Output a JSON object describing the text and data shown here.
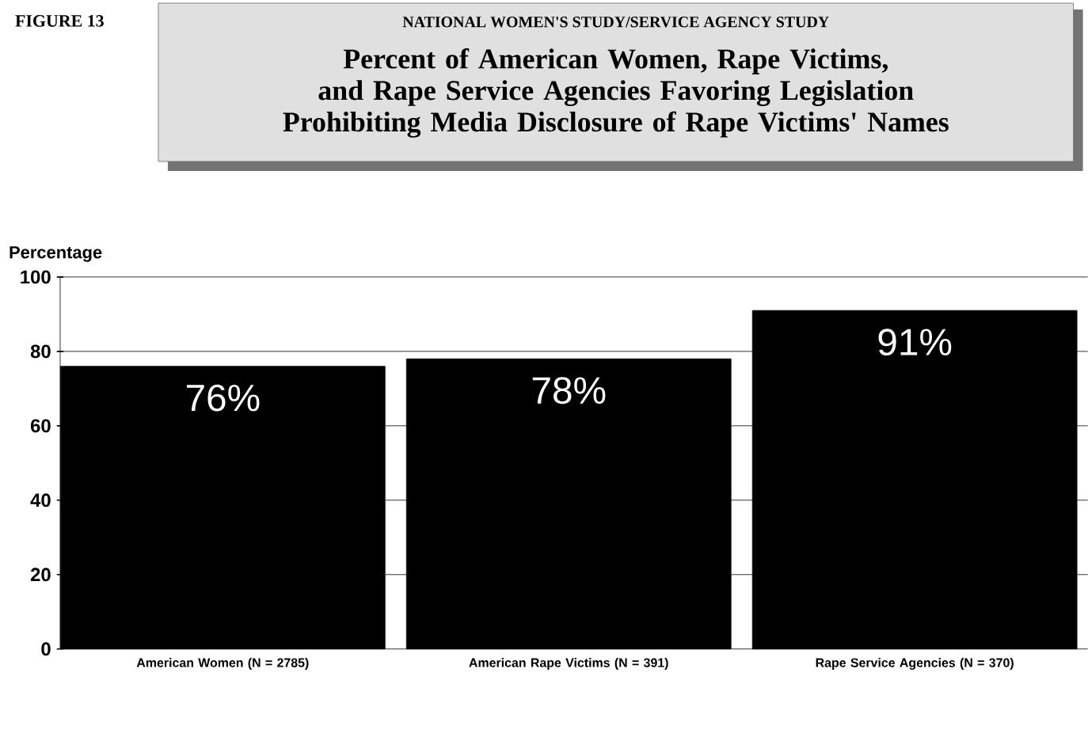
{
  "chart_data": {
    "type": "bar",
    "subtitle": "NATIONAL WOMEN'S STUDY/SERVICE AGENCY STUDY",
    "title": "Percent of American Women, Rape Victims, and Rape Service Agencies Favoring Legislation Prohibiting Media Disclosure of Rape Victims' Names",
    "ylabel": "Percentage",
    "annotations": [
      "FIGURE 13"
    ],
    "categories": [
      "American Women (N = 2785)",
      "American Rape Victims (N = 391)",
      "Rape Service Agencies (N = 370)"
    ],
    "values": [
      76,
      78,
      91
    ],
    "value_labels": [
      "76%",
      "78%",
      "91%"
    ],
    "color": "#000000",
    "ylim": [
      0,
      100
    ],
    "yticks": [
      0,
      20,
      40,
      60,
      80,
      100
    ],
    "grid": "y"
  }
}
